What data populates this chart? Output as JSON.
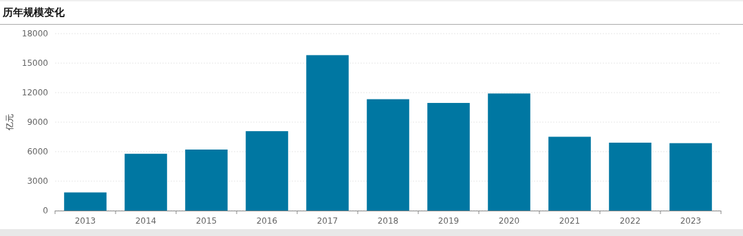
{
  "chart_data": {
    "type": "bar",
    "title": "历年规模变化",
    "ylabel": "亿元",
    "categories": [
      "2013",
      "2014",
      "2015",
      "2016",
      "2017",
      "2018",
      "2019",
      "2020",
      "2021",
      "2022",
      "2023"
    ],
    "values": [
      1850,
      5780,
      6210,
      8080,
      15810,
      11330,
      10950,
      11910,
      7510,
      6910,
      6860
    ],
    "color": "#0077a2",
    "ylim": [
      0,
      18000
    ],
    "yticks": [
      0,
      3000,
      6000,
      9000,
      12000,
      15000,
      18000
    ],
    "grid": "y"
  }
}
